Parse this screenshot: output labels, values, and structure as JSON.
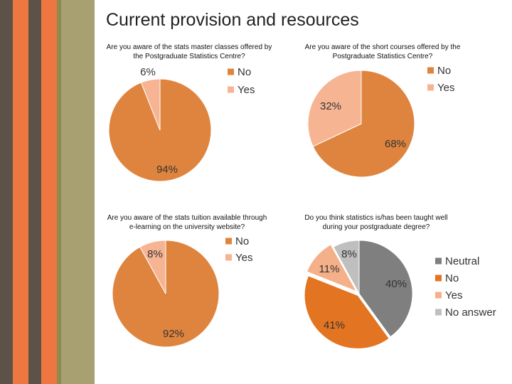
{
  "slide": {
    "title": "Current provision and resources"
  },
  "theme": {
    "stripe_colors": [
      "#5c5248",
      "#ee7640",
      "#5c5248",
      "#ee7640",
      "#8c8c4e",
      "#a8a070"
    ],
    "no_color": "#df843e",
    "yes_color": "#f6b493",
    "neutral_color": "#7f7f7f",
    "no2_color": "#e37421",
    "yes2_color": "#f4b088",
    "noanswer_color": "#bfbfbf"
  },
  "chart_data": [
    {
      "type": "pie",
      "title": "Are you aware of the stats master classes offered by the Postgraduate Statistics Centre?",
      "legend": [
        "No",
        "Yes"
      ],
      "slices": [
        {
          "name": "No",
          "value": 94,
          "label": "94%"
        },
        {
          "name": "Yes",
          "value": 6,
          "label": "6%"
        }
      ]
    },
    {
      "type": "pie",
      "title": "Are you aware of the short courses offered by the Postgraduate Statistics Centre?",
      "legend": [
        "No",
        "Yes"
      ],
      "slices": [
        {
          "name": "No",
          "value": 68,
          "label": "68%"
        },
        {
          "name": "Yes",
          "value": 32,
          "label": "32%"
        }
      ]
    },
    {
      "type": "pie",
      "title": "Are you aware of the stats tuition available through e-learning on the university website?",
      "legend": [
        "No",
        "Yes"
      ],
      "slices": [
        {
          "name": "No",
          "value": 92,
          "label": "92%"
        },
        {
          "name": "Yes",
          "value": 8,
          "label": "8%"
        }
      ]
    },
    {
      "type": "pie",
      "title": "Do you think statistics is/has been taught well during your postgraduate degree?",
      "legend": [
        "Neutral",
        "No",
        "Yes",
        "No answer"
      ],
      "slices": [
        {
          "name": "Neutral",
          "value": 40,
          "label": "40%"
        },
        {
          "name": "No",
          "value": 41,
          "label": "41%"
        },
        {
          "name": "Yes",
          "value": 11,
          "label": "11%"
        },
        {
          "name": "No answer",
          "value": 8,
          "label": "8%"
        }
      ]
    }
  ]
}
